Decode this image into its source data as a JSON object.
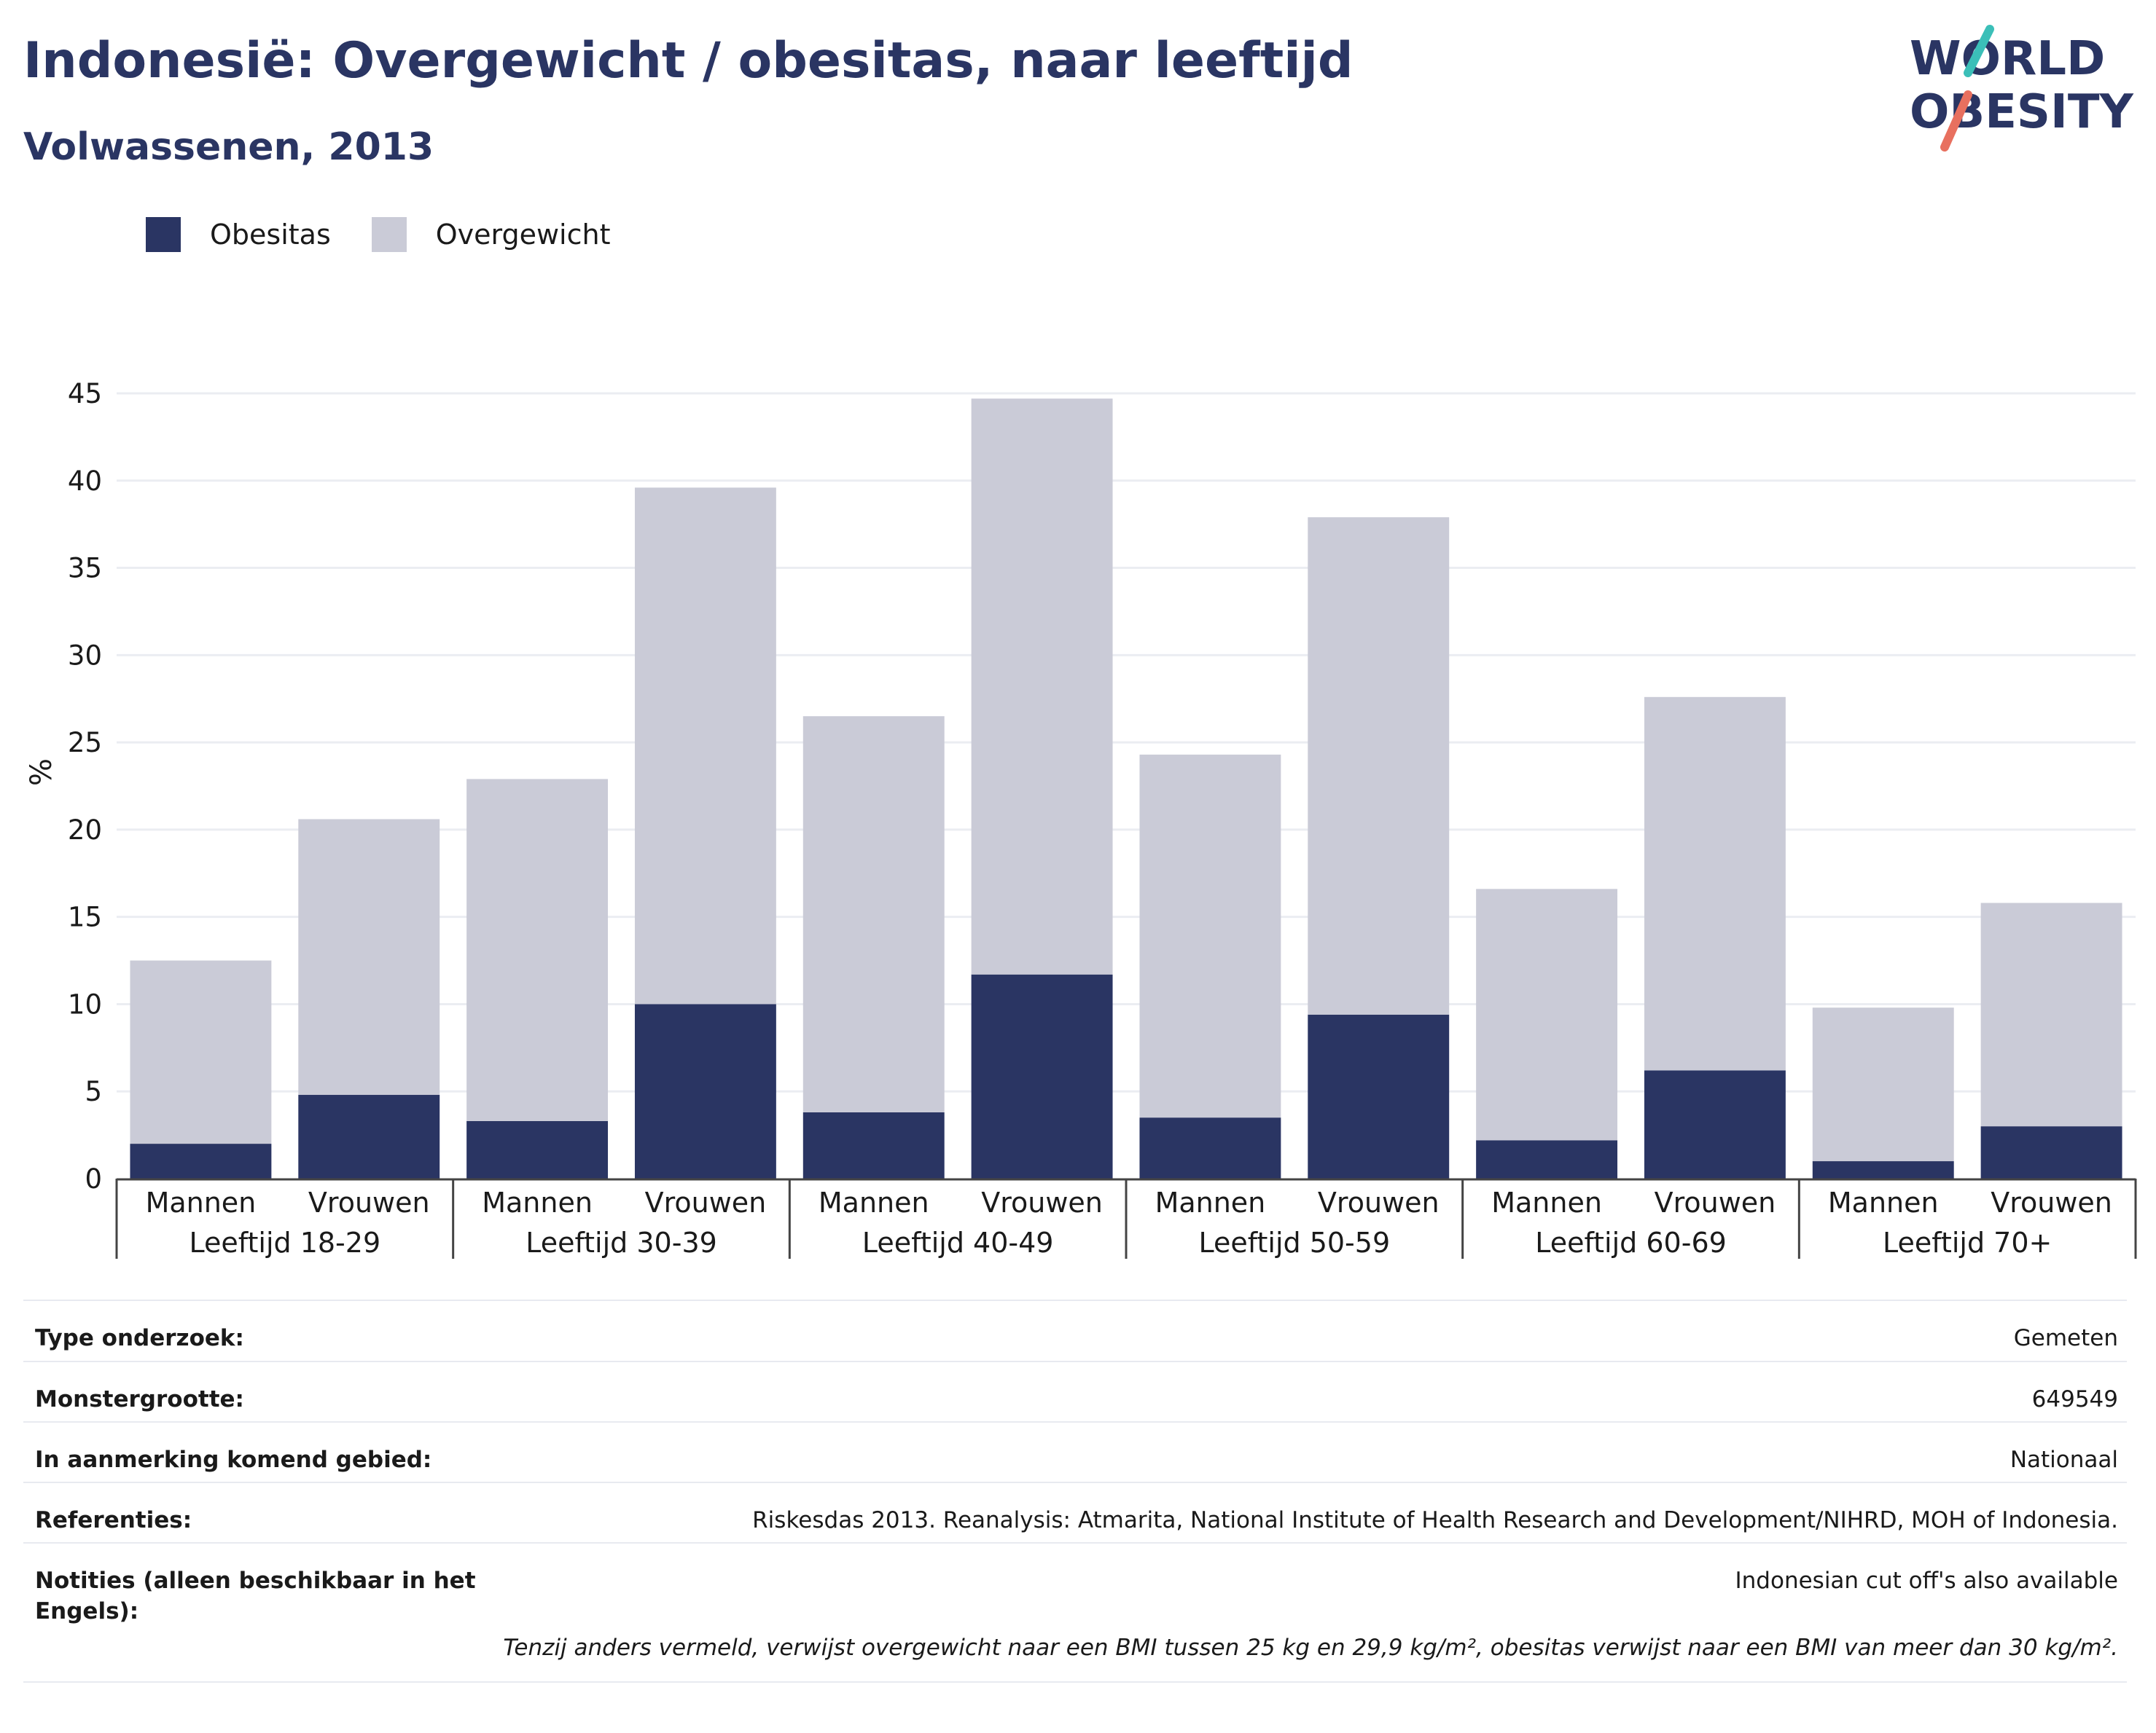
{
  "header": {
    "title": "Indonesië: Overgewicht / obesitas, naar leeftijd",
    "subtitle": "Volwassenen, 2013"
  },
  "logo": {
    "line1": "WORLD",
    "line2": "OBESITY",
    "accent_teal": "#3bbfb8",
    "accent_coral": "#e8705f",
    "text_color": "#2a3563"
  },
  "legend": {
    "items": [
      {
        "label": "Obesitas",
        "color": "#2a3563"
      },
      {
        "label": "Overgewicht",
        "color": "#cacbd7"
      }
    ]
  },
  "chart_data": {
    "type": "bar",
    "stacked": true,
    "ylabel": "%",
    "ylim": [
      0,
      45
    ],
    "yticks": [
      0,
      5,
      10,
      15,
      20,
      25,
      30,
      35,
      40,
      45
    ],
    "grid": true,
    "legend_position": "top-left",
    "groups": [
      "Leeftijd 18-29",
      "Leeftijd 30-39",
      "Leeftijd 40-49",
      "Leeftijd 50-59",
      "Leeftijd 60-69",
      "Leeftijd 70+"
    ],
    "subcategories": [
      "Mannen",
      "Vrouwen"
    ],
    "categories": [
      "Mannen",
      "Vrouwen",
      "Mannen",
      "Vrouwen",
      "Mannen",
      "Vrouwen",
      "Mannen",
      "Vrouwen",
      "Mannen",
      "Vrouwen",
      "Mannen",
      "Vrouwen"
    ],
    "series": [
      {
        "name": "Obesitas",
        "color": "#2a3563",
        "values": [
          2.0,
          4.8,
          3.3,
          10.0,
          3.8,
          11.7,
          3.5,
          9.4,
          2.2,
          6.2,
          1.0,
          3.0
        ]
      },
      {
        "name": "Overgewicht",
        "color": "#cacbd7",
        "values": [
          10.5,
          15.8,
          19.6,
          29.6,
          22.7,
          33.0,
          20.8,
          28.5,
          14.4,
          21.4,
          8.8,
          12.8
        ]
      }
    ]
  },
  "meta": {
    "rows": [
      {
        "label": "Type onderzoek:",
        "value": "Gemeten"
      },
      {
        "label": "Monstergrootte:",
        "value": "649549"
      },
      {
        "label": "In aanmerking komend gebied:",
        "value": "Nationaal"
      },
      {
        "label": "Referenties:",
        "value": "Riskesdas 2013. Reanalysis: Atmarita, National Institute of Health Research and Development/NIHRD, MOH of Indonesia."
      },
      {
        "label": "Notities (alleen beschikbaar in het Engels):",
        "value": "Indonesian cut off's also available"
      }
    ],
    "footnote": "Tenzij anders vermeld, verwijst overgewicht naar een BMI tussen 25 kg en 29,9 kg/m², obesitas verwijst naar een BMI van meer dan 30 kg/m²."
  }
}
